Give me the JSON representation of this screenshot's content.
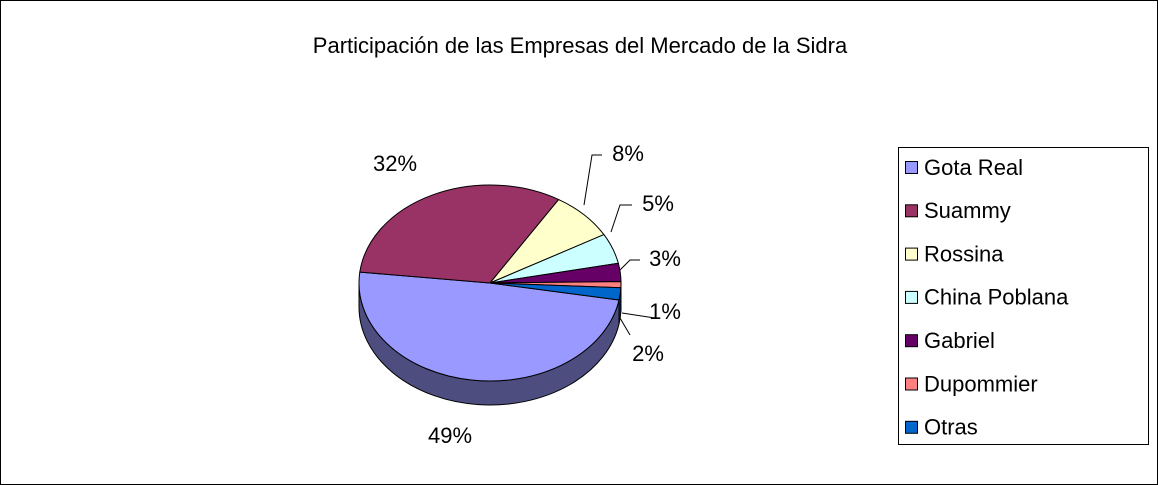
{
  "chart_data": {
    "type": "pie",
    "title": "Participación de las Empresas del Mercado de la Sidra",
    "categories": [
      "Gota Real",
      "Suammy",
      "Rossina",
      "China Poblana",
      "Gabriel",
      "Dupommier",
      "Otras"
    ],
    "values": [
      49,
      32,
      8,
      5,
      3,
      1,
      2
    ],
    "value_labels": [
      "49%",
      "32%",
      "8%",
      "5%",
      "3%",
      "1%",
      "2%"
    ],
    "colors": [
      "#9999ff",
      "#993366",
      "#ffffcc",
      "#ccffff",
      "#660066",
      "#ff8080",
      "#0066cc"
    ],
    "legend": "right"
  }
}
